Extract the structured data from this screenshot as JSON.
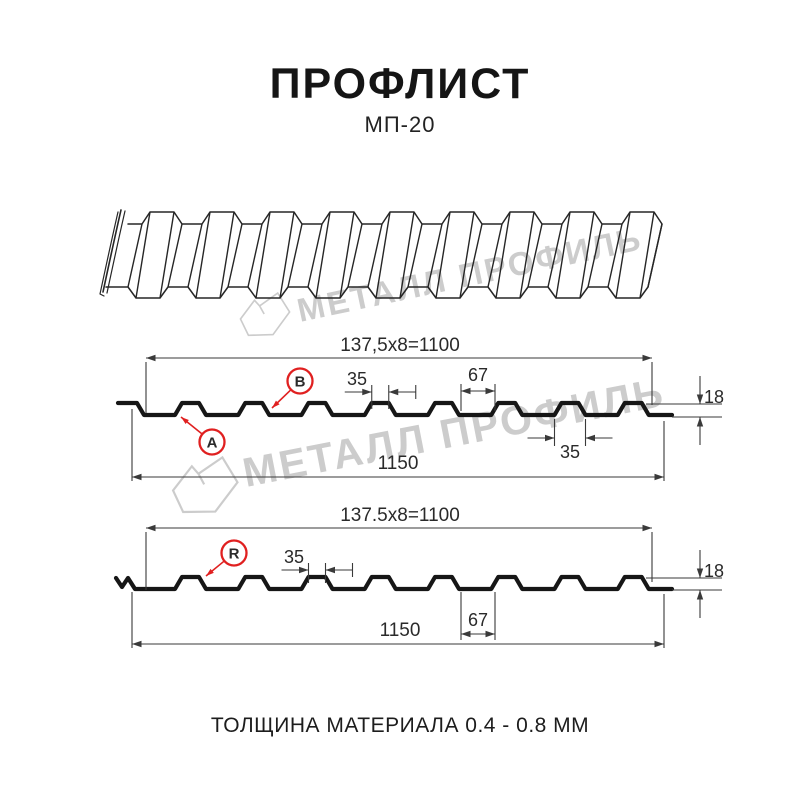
{
  "header": {
    "title": "ПРОФЛИСТ",
    "subtitle": "МП-20"
  },
  "caption": {
    "text": "ТОЛЩИНА МАТЕРИАЛА 0.4 - 0.8 ММ"
  },
  "watermark": {
    "text": "МЕТАЛЛ ПРОФИЛЬ",
    "color": "#cccccc"
  },
  "colors": {
    "line": "#161616",
    "dim": "#3a3a3a",
    "red": "#e02020"
  },
  "drawing": {
    "sections": [
      {
        "id": "profile-top",
        "module_dim": "137,5x8=1100",
        "rib_top_dim": "35",
        "valley_dim": "67",
        "height_dim": "18",
        "rib_bottom_dim": "35",
        "width_dim": "1150",
        "labels": [
          {
            "text": "A"
          },
          {
            "text": "B"
          }
        ]
      },
      {
        "id": "profile-bottom",
        "module_dim": "137.5x8=1100",
        "rib_top_dim": "35",
        "valley_dim": "67",
        "height_dim": "18",
        "width_dim": "1150",
        "labels": [
          {
            "text": "R"
          }
        ]
      }
    ]
  }
}
